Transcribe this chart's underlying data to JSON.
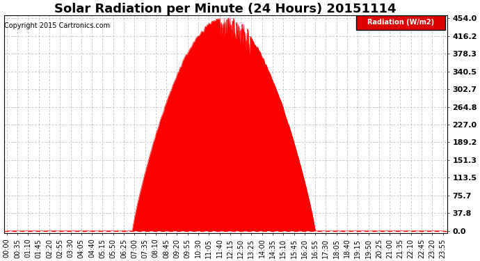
{
  "title": "Solar Radiation per Minute (24 Hours) 20151114",
  "copyright": "Copyright 2015 Cartronics.com",
  "legend_text": "Radiation (W/m2)",
  "yticks": [
    0.0,
    37.8,
    75.7,
    113.5,
    151.3,
    189.2,
    227.0,
    264.8,
    302.7,
    340.5,
    378.3,
    416.2,
    454.0
  ],
  "ylim_min": -5,
  "ylim_max": 460,
  "fill_color": "#FF0000",
  "grid_color": "#AAAAAA",
  "background_color": "#FFFFFF",
  "legend_bg": "#DD0000",
  "title_fontsize": 13,
  "tick_fontsize": 7,
  "ytick_fontsize": 8,
  "sunrise_minute": 413,
  "sunset_minute": 1015,
  "peak_minute": 745,
  "peak_value": 454.0,
  "tick_interval": 35
}
